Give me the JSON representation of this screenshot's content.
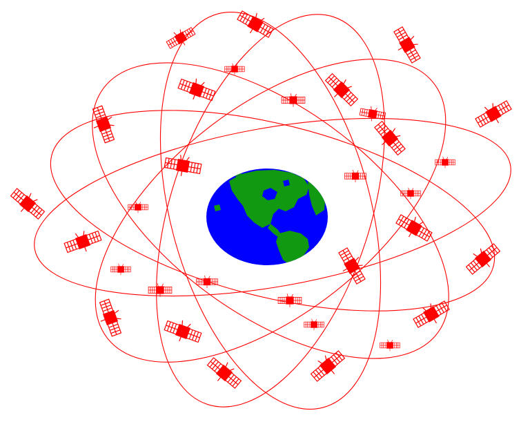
{
  "diagram": {
    "subject": "satellite-constellation",
    "orbit_plane_count": 6,
    "satellite_count": 32
  },
  "colors": {
    "background": "#ffffff",
    "orbit": "#ff0000",
    "satellite": "#ff0000",
    "ocean": "#0000ff",
    "land": "#119911"
  }
}
